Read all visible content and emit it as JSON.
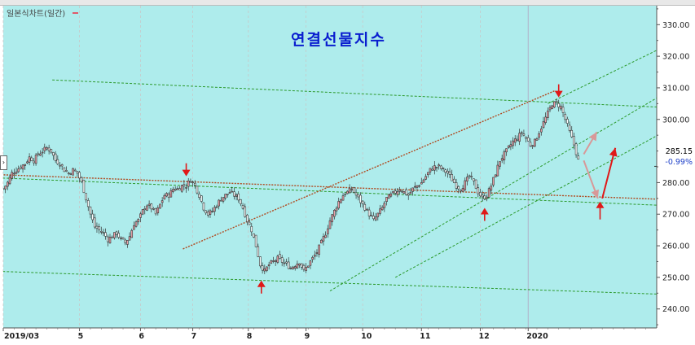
{
  "legend_label": "일본식차트(일간)",
  "title": "연결선물지수",
  "current_price": "285.15",
  "change_percent": "-0.99%",
  "left_handle_glyph": "›",
  "colors": {
    "background": "#aeecec",
    "candle_up": "#e8a0a8",
    "candle_down": "#ffffff",
    "trend_green": "#2c9a2c",
    "trend_red": "#b04a20",
    "arrow_red": "#e01818",
    "arrow_pink": "#d89898"
  },
  "chart_data": {
    "type": "candlestick",
    "title": "연결선물지수",
    "x_tick_labels": [
      "2019/03",
      "5",
      "6",
      "7",
      "8",
      "9",
      "10",
      "11",
      "12",
      "2020"
    ],
    "y_ticks": [
      240.0,
      250.0,
      260.0,
      270.0,
      280.0,
      290.0,
      300.0,
      310.0,
      320.0,
      330.0
    ],
    "y_tick_labels": [
      "240.00",
      "250.00",
      "260.00",
      "270.00",
      "280.00",
      "290.00",
      "300.00",
      "310.00",
      "320.00",
      "330.00"
    ],
    "ylim": [
      234,
      336
    ],
    "x_range_weeks": [
      0,
      48
    ],
    "grid": true,
    "x_tick_positions_weeks": [
      0,
      7,
      12.6,
      17.4,
      22.5,
      27.8,
      33.0,
      38.4,
      43.8,
      48.2
    ],
    "close_path": [
      [
        0,
        278
      ],
      [
        0.4,
        280
      ],
      [
        0.8,
        283
      ],
      [
        1.2,
        284
      ],
      [
        1.6,
        285
      ],
      [
        2,
        286
      ],
      [
        2.4,
        288
      ],
      [
        2.8,
        287
      ],
      [
        3.2,
        289
      ],
      [
        3.6,
        290
      ],
      [
        4,
        291
      ],
      [
        4.4,
        290
      ],
      [
        4.8,
        287
      ],
      [
        5.2,
        286
      ],
      [
        5.6,
        284
      ],
      [
        6,
        283
      ],
      [
        6.4,
        284
      ],
      [
        6.8,
        283
      ],
      [
        7.2,
        280
      ],
      [
        7.6,
        275
      ],
      [
        8,
        270
      ],
      [
        8.4,
        266
      ],
      [
        8.8,
        265
      ],
      [
        9.2,
        264
      ],
      [
        9.6,
        262
      ],
      [
        10,
        263
      ],
      [
        10.4,
        264
      ],
      [
        10.8,
        262
      ],
      [
        11.2,
        261
      ],
      [
        11.6,
        263
      ],
      [
        12,
        267
      ],
      [
        12.4,
        268
      ],
      [
        12.8,
        271
      ],
      [
        13.2,
        273
      ],
      [
        13.6,
        272
      ],
      [
        14,
        270
      ],
      [
        14.4,
        273
      ],
      [
        14.8,
        276
      ],
      [
        15.2,
        276
      ],
      [
        15.6,
        278
      ],
      [
        16,
        278
      ],
      [
        16.4,
        279
      ],
      [
        16.8,
        279
      ],
      [
        17.2,
        281
      ],
      [
        17.6,
        279
      ],
      [
        18,
        276
      ],
      [
        18.4,
        272
      ],
      [
        18.8,
        270
      ],
      [
        19.2,
        271
      ],
      [
        19.6,
        273
      ],
      [
        20,
        275
      ],
      [
        20.4,
        276
      ],
      [
        20.8,
        277
      ],
      [
        21.2,
        276
      ],
      [
        21.6,
        275
      ],
      [
        22,
        272
      ],
      [
        22.4,
        268
      ],
      [
        22.8,
        265
      ],
      [
        23.2,
        260
      ],
      [
        23.6,
        254
      ],
      [
        24,
        252
      ],
      [
        24.4,
        254
      ],
      [
        24.8,
        255
      ],
      [
        25.2,
        256
      ],
      [
        25.6,
        255
      ],
      [
        26,
        254
      ],
      [
        26.4,
        253
      ],
      [
        26.8,
        254
      ],
      [
        27.2,
        255
      ],
      [
        27.6,
        252
      ],
      [
        28,
        254
      ],
      [
        28.4,
        256
      ],
      [
        28.8,
        258
      ],
      [
        29.2,
        261
      ],
      [
        29.6,
        264
      ],
      [
        30,
        268
      ],
      [
        30.4,
        271
      ],
      [
        30.8,
        274
      ],
      [
        31.2,
        276
      ],
      [
        31.6,
        277
      ],
      [
        32,
        278
      ],
      [
        32.4,
        276
      ],
      [
        32.8,
        274
      ],
      [
        33.2,
        272
      ],
      [
        33.6,
        270
      ],
      [
        34,
        268
      ],
      [
        34.4,
        270
      ],
      [
        34.8,
        272
      ],
      [
        35.2,
        275
      ],
      [
        35.6,
        276
      ],
      [
        36,
        277
      ],
      [
        36.4,
        278
      ],
      [
        36.8,
        277
      ],
      [
        37.2,
        276
      ],
      [
        37.6,
        278
      ],
      [
        38,
        279
      ],
      [
        38.4,
        280
      ],
      [
        38.8,
        282
      ],
      [
        39.2,
        284
      ],
      [
        39.6,
        285
      ],
      [
        40,
        285
      ],
      [
        40.4,
        284
      ],
      [
        40.8,
        283
      ],
      [
        41.2,
        281
      ],
      [
        41.6,
        279
      ],
      [
        42,
        278
      ],
      [
        42.4,
        280
      ],
      [
        42.8,
        282
      ],
      [
        43.2,
        280
      ],
      [
        43.6,
        277
      ],
      [
        44,
        275
      ],
      [
        44.4,
        276
      ],
      [
        44.8,
        279
      ],
      [
        45.2,
        283
      ],
      [
        45.6,
        287
      ],
      [
        46,
        289
      ],
      [
        46.4,
        291
      ],
      [
        46.8,
        293
      ],
      [
        47.2,
        294
      ],
      [
        47.6,
        296
      ],
      [
        48,
        294
      ],
      [
        48.4,
        292
      ],
      [
        48.8,
        293
      ],
      [
        49.2,
        296
      ],
      [
        49.6,
        299
      ],
      [
        50,
        302
      ],
      [
        50.4,
        305
      ],
      [
        50.8,
        305
      ],
      [
        51.2,
        304
      ],
      [
        51.6,
        300
      ],
      [
        52,
        296
      ],
      [
        52.4,
        292
      ],
      [
        52.8,
        287
      ],
      [
        53,
        285.15
      ]
    ],
    "trendlines": [
      {
        "color": "green",
        "style": "dotted",
        "from": [
          4.5,
          312.5
        ],
        "to": [
          66,
          303
        ]
      },
      {
        "color": "green",
        "style": "dotted",
        "from": [
          -18,
          254
        ],
        "to": [
          66,
          244
        ]
      },
      {
        "color": "green",
        "style": "dotted",
        "from": [
          -18,
          284
        ],
        "to": [
          66,
          272
        ]
      },
      {
        "color": "green",
        "style": "dotted",
        "from": [
          36,
          250
        ],
        "to": [
          66,
          306
        ]
      },
      {
        "color": "green",
        "style": "dotted",
        "from": [
          30,
          245.7
        ],
        "to": [
          66,
          319
        ]
      },
      {
        "color": "green",
        "style": "dotted",
        "from": [
          50,
          305
        ],
        "to": [
          66,
          332
        ]
      },
      {
        "color": "red",
        "style": "dotted",
        "from": [
          -12,
          284
        ],
        "to": [
          66,
          274
        ]
      },
      {
        "color": "red",
        "style": "dotted",
        "from": [
          16.5,
          259
        ],
        "to": [
          50.6,
          309
        ]
      }
    ],
    "annotations": [
      {
        "type": "arrow-down",
        "color": "red",
        "x": 16.8,
        "y": 282
      },
      {
        "type": "arrow-up",
        "color": "red",
        "x": 23.7,
        "y": 249
      },
      {
        "type": "arrow-up",
        "color": "red",
        "x": 44.2,
        "y": 272
      },
      {
        "type": "arrow-down",
        "color": "red",
        "x": 51.0,
        "y": 307
      },
      {
        "type": "arrow-up",
        "color": "red",
        "x": 54.8,
        "y": 274
      }
    ],
    "current_value": 285.15,
    "change_percent": -0.99
  }
}
